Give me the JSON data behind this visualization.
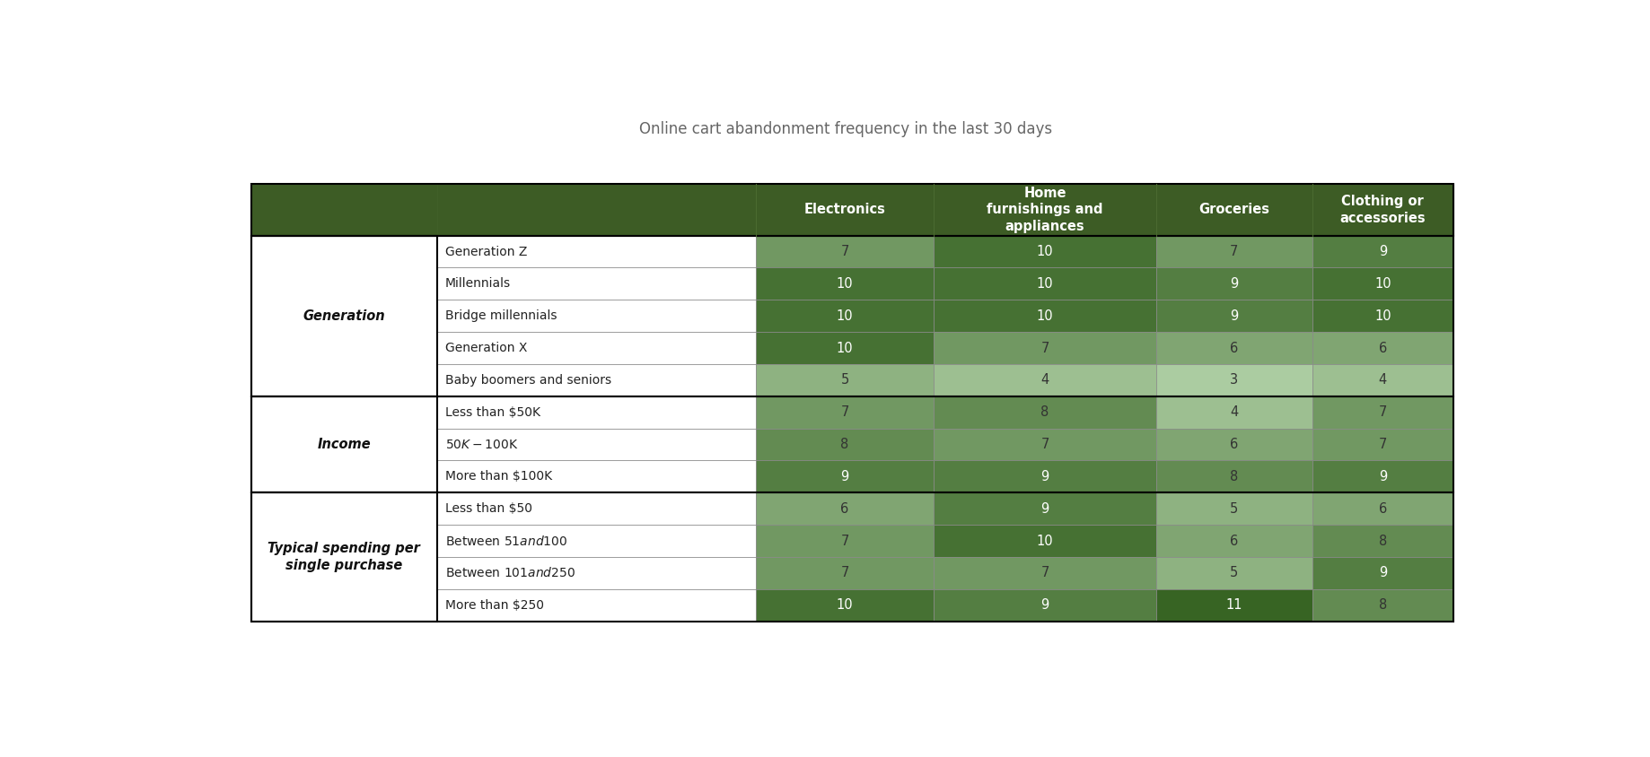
{
  "title": "Online cart abandonment frequency in the last 30 days",
  "title_fontsize": 12,
  "title_color": "#666666",
  "header_bg_color": "#3d5c25",
  "header_text_color": "#ffffff",
  "header_labels": [
    "Electronics",
    "Home\nfurnishings and\nappliances",
    "Groceries",
    "Clothing or\naccessories"
  ],
  "group_info": [
    {
      "label": "Generation",
      "start": 0,
      "end": 4
    },
    {
      "label": "Income",
      "start": 5,
      "end": 7
    },
    {
      "label": "Typical spending per\nsingle purchase",
      "start": 8,
      "end": 11
    }
  ],
  "row_labels": [
    "Generation Z",
    "Millennials",
    "Bridge millennials",
    "Generation X",
    "Baby boomers and seniors",
    "Less than $50K",
    "$50K-$100K",
    "More than $100K",
    "Less than $50",
    "Between $51 and $100",
    "Between $101 and $250",
    "More than $250"
  ],
  "values": [
    [
      7,
      10,
      7,
      9
    ],
    [
      10,
      10,
      9,
      10
    ],
    [
      10,
      10,
      9,
      10
    ],
    [
      10,
      7,
      6,
      6
    ],
    [
      5,
      4,
      3,
      4
    ],
    [
      7,
      8,
      4,
      7
    ],
    [
      8,
      7,
      6,
      7
    ],
    [
      9,
      9,
      8,
      9
    ],
    [
      6,
      9,
      5,
      6
    ],
    [
      7,
      10,
      6,
      8
    ],
    [
      7,
      7,
      5,
      9
    ],
    [
      10,
      9,
      11,
      8
    ]
  ],
  "max_value": 11,
  "min_value": 1,
  "color_light": [
    200,
    230,
    192
  ],
  "color_dark": [
    55,
    100,
    35
  ],
  "figure_bg": "#ffffff",
  "border_thick": "#000000",
  "border_thin": "#888888",
  "row_bg": "#ffffff"
}
